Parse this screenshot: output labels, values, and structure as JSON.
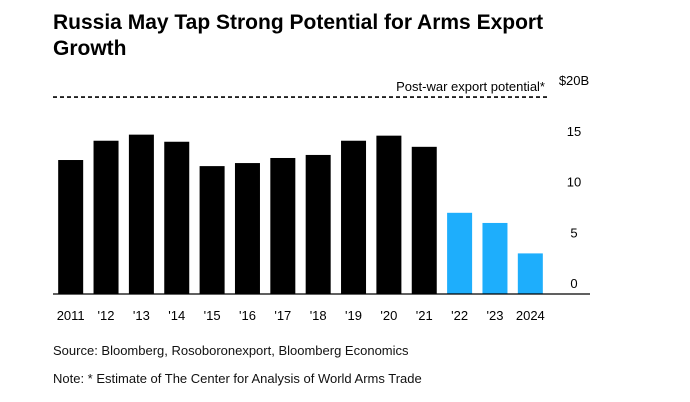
{
  "title": "Russia May Tap Strong Potential for Arms Export Growth",
  "source": "Source: Bloomberg, Rosoboronexport, Bloomberg Economics",
  "note": "Note: * Estimate of The Center for Analysis of World Arms Trade",
  "colors": {
    "historical": "#000000",
    "recent": "#1eaefc",
    "axis": "#000000",
    "reference": "#000000"
  },
  "chart_data": {
    "type": "bar",
    "categories": [
      "2011",
      "'12",
      "'13",
      "'14",
      "'15",
      "'16",
      "'17",
      "'18",
      "'19",
      "'20",
      "'21",
      "'22",
      "'23",
      "2024"
    ],
    "values": [
      13.2,
      15.1,
      15.7,
      15.0,
      12.6,
      12.9,
      13.4,
      13.7,
      15.1,
      15.6,
      14.5,
      8.0,
      7.0,
      4.0
    ],
    "highlighted_from": "'22",
    "ylim": [
      0,
      20
    ],
    "y_ticks": [
      0,
      5,
      10,
      15,
      20
    ],
    "y_tick_labels": [
      "0",
      "5",
      "10",
      "15",
      "$20B"
    ],
    "y_axis_position": "right",
    "reference_line": {
      "value": 19.5,
      "label": "Post-war export potential*",
      "style": "dashed"
    },
    "grid": false
  }
}
